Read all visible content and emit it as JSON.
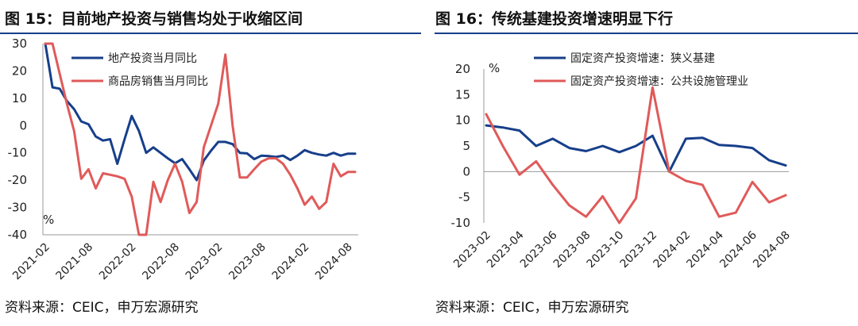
{
  "panels": [
    {
      "title": "图 15：目前地产投资与销售均处于收缩区间",
      "source": "资料来源：CEIC，申万宏源研究",
      "chart_data": {
        "type": "line",
        "unit_label": "%",
        "ylim": [
          -40,
          30
        ],
        "yticks": [
          30,
          20,
          10,
          0,
          -10,
          -20,
          -30,
          -40
        ],
        "xticks": [
          "2021-02",
          "2021-08",
          "2022-02",
          "2022-08",
          "2023-02",
          "2023-08",
          "2024-02",
          "2024-08"
        ],
        "x": [
          "2021-02",
          "2021-03",
          "2021-04",
          "2021-05",
          "2021-06",
          "2021-07",
          "2021-08",
          "2021-09",
          "2021-10",
          "2021-11",
          "2021-12",
          "2022-01",
          "2022-02",
          "2022-03",
          "2022-04",
          "2022-05",
          "2022-06",
          "2022-07",
          "2022-08",
          "2022-09",
          "2022-10",
          "2022-11",
          "2022-12",
          "2023-01",
          "2023-02",
          "2023-03",
          "2023-04",
          "2023-05",
          "2023-06",
          "2023-07",
          "2023-08",
          "2023-09",
          "2023-10",
          "2023-11",
          "2023-12",
          "2024-01",
          "2024-02",
          "2024-03",
          "2024-04",
          "2024-05",
          "2024-06",
          "2024-07",
          "2024-08",
          "2024-09"
        ],
        "legend_position": "top-left",
        "series": [
          {
            "name": "地产投资当月同比",
            "color": "#173f8a",
            "values": [
              30,
              14,
              13.5,
              9,
              6,
              1.5,
              0.5,
              -4,
              -5.5,
              -5,
              -14,
              -5,
              3.5,
              -2,
              -10,
              -8,
              -10,
              -12,
              -13.8,
              -12.3,
              -16,
              -20,
              -12.8,
              -9.2,
              -6,
              -6,
              -6.8,
              -10,
              -10.2,
              -12.3,
              -11,
              -11.2,
              -11.5,
              -11,
              -12.6,
              -11,
              -9,
              -10,
              -10.6,
              -11,
              -10,
              -11,
              -10.3,
              -10.3
            ]
          },
          {
            "name": "商品房销售当月同比",
            "color": "#e05a5a",
            "values": [
              35,
              34,
              19,
              8,
              -2,
              -19.5,
              -16,
              -23,
              -17.5,
              -18,
              -18.6,
              -19.5,
              -26,
              -40,
              -40,
              -20.6,
              -28,
              -20,
              -14,
              -20.6,
              -32,
              -28,
              -8,
              0,
              8,
              26,
              0,
              -19,
              -19,
              -16,
              -13.2,
              -12,
              -12,
              -14,
              -18,
              -23,
              -29,
              -26,
              -30.5,
              -28,
              -14,
              -18.6,
              -17,
              -17
            ]
          }
        ]
      }
    },
    {
      "title": "图 16：传统基建投资增速明显下行",
      "source": "资料来源：CEIC，申万宏源研究",
      "chart_data": {
        "type": "line",
        "unit_label": "%",
        "ylim": [
          -10,
          20
        ],
        "yticks": [
          20,
          15,
          10,
          5,
          0,
          -5,
          -10
        ],
        "xticks": [
          "2023-02",
          "2023-04",
          "2023-06",
          "2023-08",
          "2023-10",
          "2023-12",
          "2024-02",
          "2024-04",
          "2024-06",
          "2024-08"
        ],
        "x": [
          "2023-02",
          "2023-03",
          "2023-04",
          "2023-05",
          "2023-06",
          "2023-07",
          "2023-08",
          "2023-09",
          "2023-10",
          "2023-11",
          "2023-12",
          "2024-01",
          "2024-02",
          "2024-03",
          "2024-04",
          "2024-05",
          "2024-06",
          "2024-07",
          "2024-08"
        ],
        "legend_position": "top-center",
        "series": [
          {
            "name": "固定资产投资增速：狭义基建",
            "color": "#173f8a",
            "values": [
              9,
              8.6,
              8,
              5,
              6.4,
              4.6,
              4,
              5,
              3.8,
              5,
              7,
              0,
              6.4,
              6.6,
              5.2,
              5,
              4.6,
              2.2,
              1.2
            ]
          },
          {
            "name": "固定资产投资增速：公共设施管理业",
            "color": "#e05a5a",
            "values": [
              11.2,
              5,
              -0.6,
              2,
              -2.6,
              -6.6,
              -8.8,
              -4.8,
              -10.2,
              -5.2,
              16.4,
              0,
              -1.8,
              -2.6,
              -8.8,
              -8,
              -2,
              -6,
              -4.6
            ]
          }
        ]
      }
    }
  ]
}
